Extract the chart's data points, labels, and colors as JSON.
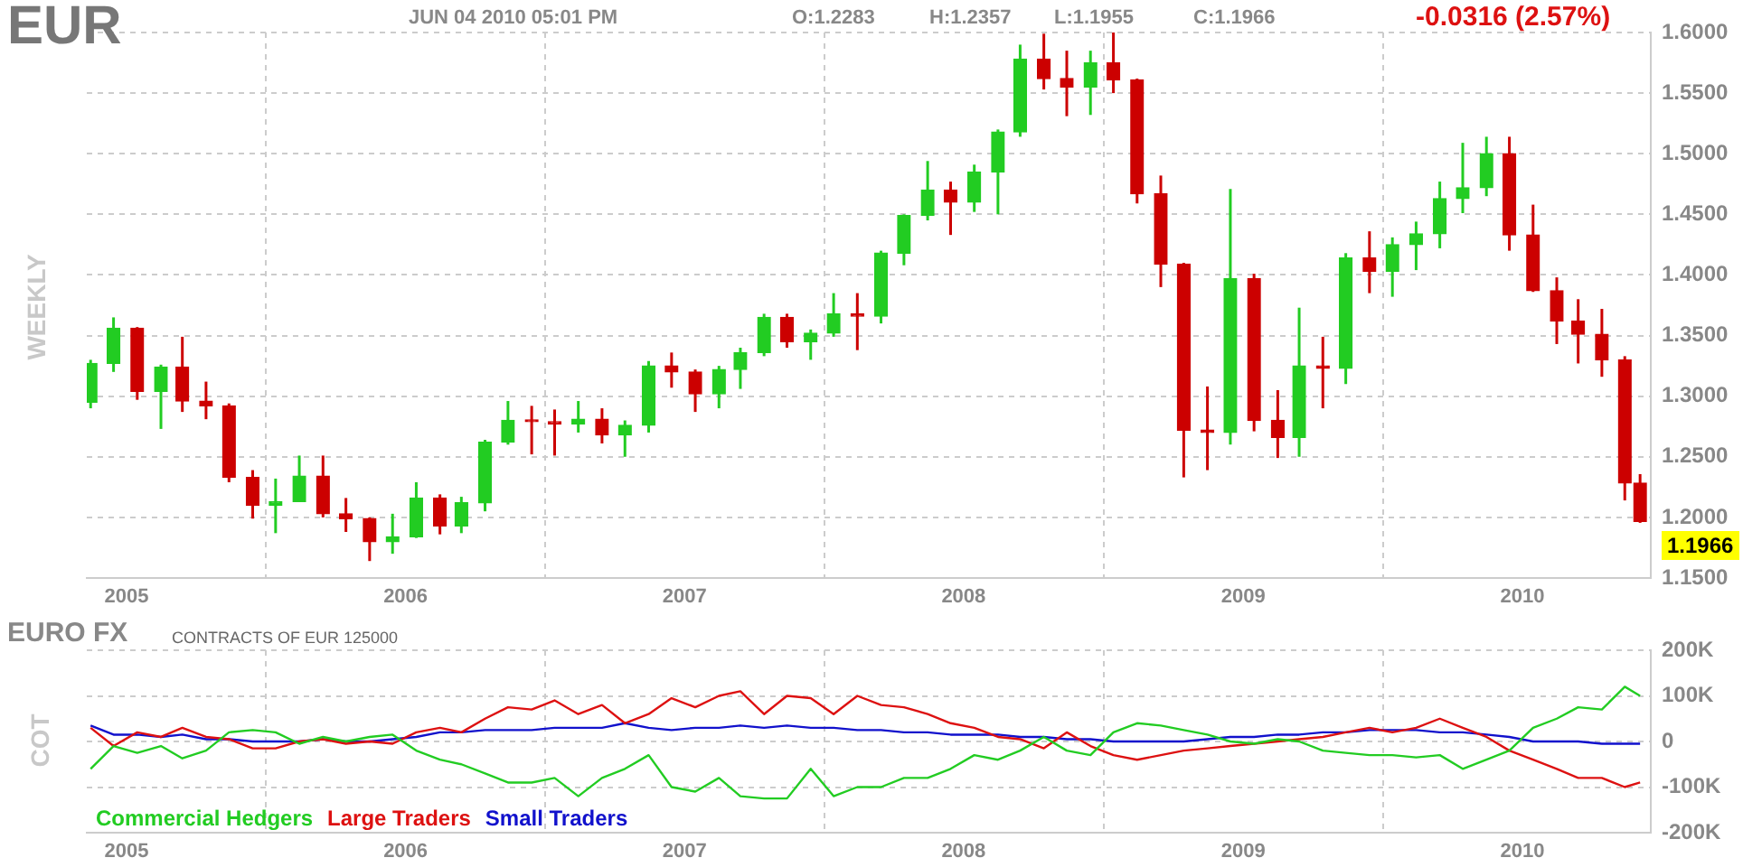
{
  "chart_data": [
    {
      "type": "candlestick",
      "title": "EUR",
      "subtitle": "JUN 04 2010 05:01 PM",
      "ylabel": "WEEKLY",
      "annotations": [
        "O:1.2283",
        "H:1.2357",
        "L:1.1955",
        "C:1.1966",
        "-0.0316 (2.57%)",
        {
          "text": "1.1966",
          "x": "2010-06-04",
          "y": 1.1966
        }
      ],
      "x": [
        "2004-11-15",
        "2004-12-15",
        "2005-01-15",
        "2005-02-15",
        "2005-03-15",
        "2005-04-15",
        "2005-05-15",
        "2005-06-15",
        "2005-07-15",
        "2005-08-15",
        "2005-09-15",
        "2005-10-15",
        "2005-11-15",
        "2005-12-15",
        "2006-01-15",
        "2006-02-15",
        "2006-03-15",
        "2006-04-15",
        "2006-05-15",
        "2006-06-15",
        "2006-07-15",
        "2006-08-15",
        "2006-09-15",
        "2006-10-15",
        "2006-11-15",
        "2006-12-15",
        "2007-01-15",
        "2007-02-15",
        "2007-03-15",
        "2007-04-15",
        "2007-05-15",
        "2007-06-15",
        "2007-07-15",
        "2007-08-15",
        "2007-09-15",
        "2007-10-15",
        "2007-11-15",
        "2007-12-15",
        "2008-01-15",
        "2008-02-15",
        "2008-03-15",
        "2008-04-15",
        "2008-05-15",
        "2008-06-15",
        "2008-07-15",
        "2008-08-15",
        "2008-09-15",
        "2008-10-15",
        "2008-11-15",
        "2008-12-15",
        "2009-01-15",
        "2009-02-15",
        "2009-03-15",
        "2009-04-15",
        "2009-05-15",
        "2009-06-15",
        "2009-07-15",
        "2009-08-15",
        "2009-09-15",
        "2009-10-15",
        "2009-11-15",
        "2009-12-15",
        "2010-01-15",
        "2010-02-15",
        "2010-03-15",
        "2010-04-15",
        "2010-05-15",
        "2010-06-04"
      ],
      "ohlc": [
        [
          1.295,
          1.33,
          1.29,
          1.327
        ],
        [
          1.327,
          1.365,
          1.32,
          1.356
        ],
        [
          1.356,
          1.357,
          1.297,
          1.304
        ],
        [
          1.304,
          1.326,
          1.273,
          1.324
        ],
        [
          1.324,
          1.349,
          1.287,
          1.296
        ],
        [
          1.296,
          1.312,
          1.281,
          1.292
        ],
        [
          1.292,
          1.294,
          1.229,
          1.233
        ],
        [
          1.233,
          1.239,
          1.199,
          1.21
        ],
        [
          1.21,
          1.232,
          1.187,
          1.213
        ],
        [
          1.213,
          1.251,
          1.213,
          1.234
        ],
        [
          1.234,
          1.251,
          1.2,
          1.203
        ],
        [
          1.203,
          1.216,
          1.188,
          1.199
        ],
        [
          1.199,
          1.2,
          1.164,
          1.18
        ],
        [
          1.18,
          1.203,
          1.17,
          1.184
        ],
        [
          1.184,
          1.229,
          1.183,
          1.216
        ],
        [
          1.216,
          1.219,
          1.186,
          1.193
        ],
        [
          1.193,
          1.217,
          1.187,
          1.212
        ],
        [
          1.212,
          1.264,
          1.205,
          1.262
        ],
        [
          1.262,
          1.296,
          1.26,
          1.28
        ],
        [
          1.28,
          1.292,
          1.252,
          1.279
        ],
        [
          1.279,
          1.289,
          1.251,
          1.277
        ],
        [
          1.277,
          1.296,
          1.27,
          1.281
        ],
        [
          1.281,
          1.29,
          1.261,
          1.268
        ],
        [
          1.268,
          1.28,
          1.25,
          1.276
        ],
        [
          1.276,
          1.329,
          1.27,
          1.325
        ],
        [
          1.325,
          1.336,
          1.307,
          1.32
        ],
        [
          1.32,
          1.322,
          1.287,
          1.302
        ],
        [
          1.302,
          1.325,
          1.29,
          1.322
        ],
        [
          1.322,
          1.34,
          1.306,
          1.336
        ],
        [
          1.336,
          1.368,
          1.333,
          1.365
        ],
        [
          1.365,
          1.368,
          1.34,
          1.345
        ],
        [
          1.345,
          1.355,
          1.33,
          1.352
        ],
        [
          1.352,
          1.385,
          1.349,
          1.368
        ],
        [
          1.368,
          1.385,
          1.338,
          1.366
        ],
        [
          1.366,
          1.42,
          1.36,
          1.418
        ],
        [
          1.418,
          1.45,
          1.408,
          1.449
        ],
        [
          1.449,
          1.494,
          1.445,
          1.47
        ],
        [
          1.47,
          1.477,
          1.433,
          1.46
        ],
        [
          1.46,
          1.491,
          1.452,
          1.485
        ],
        [
          1.485,
          1.52,
          1.45,
          1.518
        ],
        [
          1.518,
          1.59,
          1.514,
          1.578
        ],
        [
          1.578,
          1.599,
          1.553,
          1.562
        ],
        [
          1.562,
          1.585,
          1.531,
          1.555
        ],
        [
          1.555,
          1.585,
          1.532,
          1.575
        ],
        [
          1.575,
          1.6,
          1.55,
          1.561
        ],
        [
          1.561,
          1.562,
          1.459,
          1.467
        ],
        [
          1.467,
          1.482,
          1.39,
          1.409
        ],
        [
          1.409,
          1.41,
          1.233,
          1.272
        ],
        [
          1.272,
          1.308,
          1.239,
          1.27
        ],
        [
          1.27,
          1.471,
          1.26,
          1.397
        ],
        [
          1.397,
          1.401,
          1.271,
          1.28
        ],
        [
          1.28,
          1.305,
          1.249,
          1.266
        ],
        [
          1.266,
          1.373,
          1.25,
          1.325
        ],
        [
          1.325,
          1.349,
          1.29,
          1.323
        ],
        [
          1.323,
          1.418,
          1.31,
          1.414
        ],
        [
          1.414,
          1.436,
          1.385,
          1.403
        ],
        [
          1.403,
          1.431,
          1.382,
          1.425
        ],
        [
          1.425,
          1.444,
          1.404,
          1.434
        ],
        [
          1.434,
          1.477,
          1.422,
          1.463
        ],
        [
          1.463,
          1.509,
          1.451,
          1.472
        ],
        [
          1.472,
          1.514,
          1.465,
          1.5
        ],
        [
          1.5,
          1.514,
          1.42,
          1.433
        ],
        [
          1.433,
          1.458,
          1.386,
          1.387
        ],
        [
          1.387,
          1.398,
          1.343,
          1.362
        ],
        [
          1.362,
          1.38,
          1.327,
          1.351
        ],
        [
          1.351,
          1.372,
          1.316,
          1.33
        ],
        [
          1.33,
          1.333,
          1.214,
          1.2283
        ],
        [
          1.2283,
          1.2357,
          1.1955,
          1.1966
        ]
      ],
      "colors": [
        "#22cc22",
        "#22cc22",
        "#cc0000",
        "#22cc22",
        "#cc0000",
        "#cc0000",
        "#cc0000",
        "#cc0000",
        "#22cc22",
        "#22cc22",
        "#cc0000",
        "#cc0000",
        "#cc0000",
        "#22cc22",
        "#22cc22",
        "#cc0000",
        "#22cc22",
        "#22cc22",
        "#22cc22",
        "#cc0000",
        "#cc0000",
        "#22cc22",
        "#cc0000",
        "#22cc22",
        "#22cc22",
        "#cc0000",
        "#cc0000",
        "#22cc22",
        "#22cc22",
        "#22cc22",
        "#cc0000",
        "#22cc22",
        "#22cc22",
        "#cc0000",
        "#22cc22",
        "#22cc22",
        "#22cc22",
        "#cc0000",
        "#22cc22",
        "#22cc22",
        "#22cc22",
        "#cc0000",
        "#cc0000",
        "#22cc22",
        "#cc0000",
        "#cc0000",
        "#cc0000",
        "#cc0000",
        "#cc0000",
        "#22cc22",
        "#cc0000",
        "#cc0000",
        "#22cc22",
        "#cc0000",
        "#22cc22",
        "#cc0000",
        "#22cc22",
        "#22cc22",
        "#22cc22",
        "#22cc22",
        "#22cc22",
        "#cc0000",
        "#cc0000",
        "#cc0000",
        "#cc0000",
        "#cc0000",
        "#cc0000",
        "#cc0000"
      ],
      "xlim": [
        "2004-11-10",
        "2010-06-18"
      ],
      "xticks": [
        {
          "value": "2005-01-01",
          "label": "2005"
        },
        {
          "value": "2006-01-01",
          "label": "2006"
        },
        {
          "value": "2007-01-01",
          "label": "2007"
        },
        {
          "value": "2008-01-01",
          "label": "2008"
        },
        {
          "value": "2009-01-01",
          "label": "2009"
        },
        {
          "value": "2010-01-01",
          "label": "2010"
        }
      ],
      "ylim": [
        1.15,
        1.6
      ],
      "yticks": [
        {
          "value": 1.15,
          "label": "1.1500"
        },
        {
          "value": 1.2,
          "label": "1.2000"
        },
        {
          "value": 1.25,
          "label": "1.2500"
        },
        {
          "value": 1.3,
          "label": "1.3000"
        },
        {
          "value": 1.35,
          "label": "1.3500"
        },
        {
          "value": 1.4,
          "label": "1.4000"
        },
        {
          "value": 1.45,
          "label": "1.4500"
        },
        {
          "value": 1.5,
          "label": "1.5000"
        },
        {
          "value": 1.55,
          "label": "1.5500"
        },
        {
          "value": 1.6,
          "label": "1.6000"
        }
      ],
      "grid": true
    },
    {
      "type": "line",
      "title": "EURO FX",
      "subtitle": "CONTRACTS OF EUR 125000",
      "ylabel": "COT",
      "x": [
        "2004-11-15",
        "2004-12-15",
        "2005-01-15",
        "2005-02-15",
        "2005-03-15",
        "2005-04-15",
        "2005-05-15",
        "2005-06-15",
        "2005-07-15",
        "2005-08-15",
        "2005-09-15",
        "2005-10-15",
        "2005-11-15",
        "2005-12-15",
        "2006-01-15",
        "2006-02-15",
        "2006-03-15",
        "2006-04-15",
        "2006-05-15",
        "2006-06-15",
        "2006-07-15",
        "2006-08-15",
        "2006-09-15",
        "2006-10-15",
        "2006-11-15",
        "2006-12-15",
        "2007-01-15",
        "2007-02-15",
        "2007-03-15",
        "2007-04-15",
        "2007-05-15",
        "2007-06-15",
        "2007-07-15",
        "2007-08-15",
        "2007-09-15",
        "2007-10-15",
        "2007-11-15",
        "2007-12-15",
        "2008-01-15",
        "2008-02-15",
        "2008-03-15",
        "2008-04-15",
        "2008-05-15",
        "2008-06-15",
        "2008-07-15",
        "2008-08-15",
        "2008-09-15",
        "2008-10-15",
        "2008-11-15",
        "2008-12-15",
        "2009-01-15",
        "2009-02-15",
        "2009-03-15",
        "2009-04-15",
        "2009-05-15",
        "2009-06-15",
        "2009-07-15",
        "2009-08-15",
        "2009-09-15",
        "2009-10-15",
        "2009-11-15",
        "2009-12-15",
        "2010-01-15",
        "2010-02-15",
        "2010-03-15",
        "2010-04-15",
        "2010-05-15",
        "2010-06-04"
      ],
      "series": [
        {
          "name": "Commercial Hedgers",
          "color": "#22cc22",
          "values": [
            -60000,
            -10000,
            -25000,
            -10000,
            -37000,
            -20000,
            20000,
            25000,
            20000,
            -5000,
            10000,
            0,
            10000,
            15000,
            -20000,
            -40000,
            -50000,
            -70000,
            -90000,
            -90000,
            -80000,
            -120000,
            -80000,
            -60000,
            -30000,
            -100000,
            -110000,
            -80000,
            -120000,
            -125000,
            -125000,
            -60000,
            -120000,
            -100000,
            -100000,
            -80000,
            -80000,
            -60000,
            -30000,
            -40000,
            -20000,
            10000,
            -20000,
            -30000,
            20000,
            40000,
            35000,
            25000,
            15000,
            0,
            -5000,
            5000,
            0,
            -20000,
            -25000,
            -30000,
            -30000,
            -35000,
            -30000,
            -60000,
            -40000,
            -20000,
            30000,
            50000,
            75000,
            70000,
            120000,
            100000
          ]
        },
        {
          "name": "Large Traders",
          "color": "#dd1111",
          "values": [
            30000,
            -10000,
            20000,
            10000,
            30000,
            10000,
            5000,
            -15000,
            -15000,
            0,
            5000,
            -5000,
            0,
            -5000,
            20000,
            30000,
            20000,
            50000,
            75000,
            70000,
            90000,
            60000,
            80000,
            40000,
            60000,
            95000,
            75000,
            100000,
            110000,
            60000,
            100000,
            95000,
            60000,
            100000,
            80000,
            75000,
            60000,
            40000,
            30000,
            10000,
            5000,
            -15000,
            20000,
            -10000,
            -30000,
            -40000,
            -30000,
            -20000,
            -15000,
            -10000,
            -5000,
            0,
            5000,
            10000,
            20000,
            30000,
            20000,
            30000,
            50000,
            30000,
            10000,
            -20000,
            -40000,
            -60000,
            -80000,
            -80000,
            -100000,
            -90000
          ]
        },
        {
          "name": "Small Traders",
          "color": "#1111cc",
          "values": [
            35000,
            15000,
            15000,
            10000,
            15000,
            5000,
            5000,
            0,
            0,
            0,
            5000,
            0,
            0,
            5000,
            10000,
            20000,
            20000,
            25000,
            25000,
            25000,
            30000,
            30000,
            30000,
            40000,
            30000,
            25000,
            30000,
            30000,
            35000,
            30000,
            35000,
            30000,
            30000,
            25000,
            25000,
            20000,
            20000,
            15000,
            15000,
            15000,
            10000,
            10000,
            5000,
            5000,
            0,
            0,
            0,
            0,
            5000,
            10000,
            10000,
            15000,
            15000,
            20000,
            20000,
            25000,
            25000,
            25000,
            20000,
            20000,
            15000,
            10000,
            0,
            0,
            0,
            -5000,
            -5000,
            -5000
          ]
        }
      ],
      "xlim": [
        "2004-11-10",
        "2010-06-18"
      ],
      "xticks": [
        {
          "value": "2005-01-01",
          "label": "2005"
        },
        {
          "value": "2006-01-01",
          "label": "2006"
        },
        {
          "value": "2007-01-01",
          "label": "2007"
        },
        {
          "value": "2008-01-01",
          "label": "2008"
        },
        {
          "value": "2009-01-01",
          "label": "2009"
        },
        {
          "value": "2010-01-01",
          "label": "2010"
        }
      ],
      "ylim": [
        -200000,
        200000
      ],
      "yticks": [
        {
          "value": -200000,
          "label": "-200K"
        },
        {
          "value": -100000,
          "label": "-100K"
        },
        {
          "value": 0,
          "label": "0"
        },
        {
          "value": 100000,
          "label": "100K"
        },
        {
          "value": 200000,
          "label": "200K"
        }
      ],
      "grid": true,
      "legend": "bottom left"
    }
  ]
}
